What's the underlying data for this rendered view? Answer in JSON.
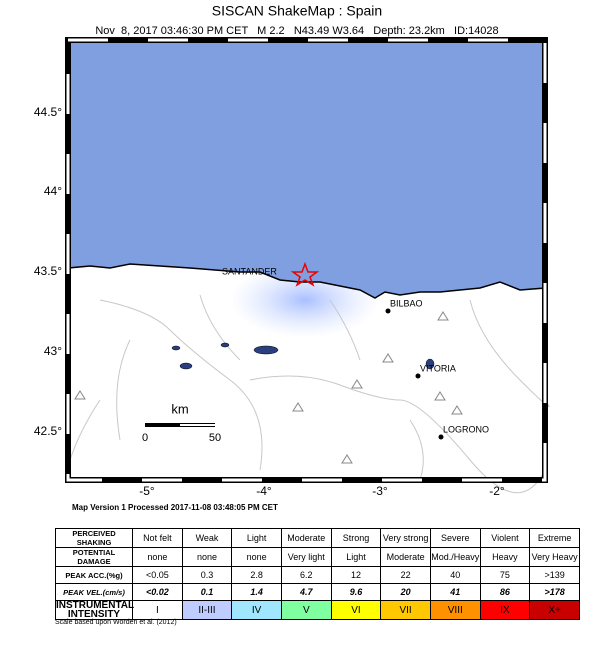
{
  "header": {
    "title": "SISCAN ShakeMap : Spain",
    "subtitle": "Nov  8, 2017 03:46:30 PM CET   M 2.2   N43.49 W3.64   Depth: 23.2km   ID:14028"
  },
  "map": {
    "lat_labels": [
      "44.5°",
      "44°",
      "43.5°",
      "43°",
      "42.5°"
    ],
    "lon_labels": [
      "-5°",
      "-4°",
      "-3°",
      "-2°"
    ],
    "cities": [
      "SANTANDER",
      "BILBAO",
      "VITORIA",
      "LOGRONO"
    ],
    "scale": {
      "unit": "km",
      "start": "0",
      "end": "50"
    }
  },
  "processed": "Map Version 1 Processed 2017-11-08 03:48:05 PM CET",
  "legend": {
    "rows": [
      [
        "PERCEIVED SHAKING",
        "Not felt",
        "Weak",
        "Light",
        "Moderate",
        "Strong",
        "Very strong",
        "Severe",
        "Violent",
        "Extreme"
      ],
      [
        "POTENTIAL DAMAGE",
        "none",
        "none",
        "none",
        "Very light",
        "Light",
        "Moderate",
        "Mod./Heavy",
        "Heavy",
        "Very Heavy"
      ],
      [
        "PEAK ACC.(%g)",
        "<0.05",
        "0.3",
        "2.8",
        "6.2",
        "12",
        "22",
        "40",
        "75",
        ">139"
      ],
      [
        "PEAK VEL.(cm/s)",
        "<0.02",
        "0.1",
        "1.4",
        "4.7",
        "9.6",
        "20",
        "41",
        "86",
        ">178"
      ],
      [
        "INSTRUMENTAL INTENSITY",
        "I",
        "II-III",
        "IV",
        "V",
        "VI",
        "VII",
        "VIII",
        "IX",
        "X+"
      ]
    ]
  },
  "footnote": "Scale based upon Worden et al. (2012)"
}
